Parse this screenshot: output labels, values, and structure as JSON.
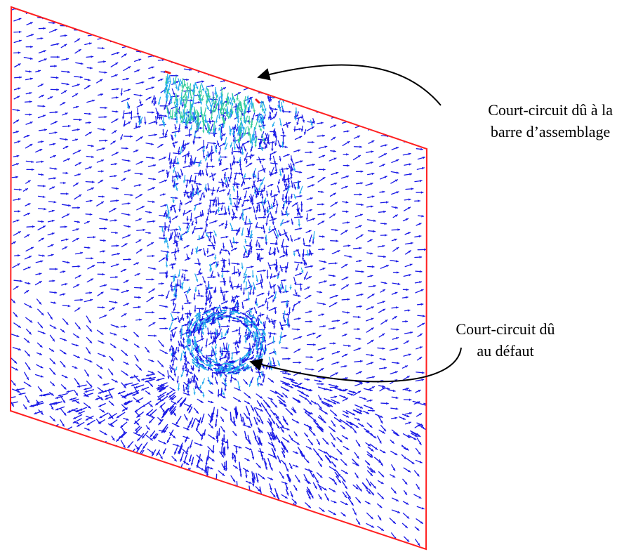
{
  "annotations": {
    "busbar_short_circuit": {
      "line1": "Court-circuit dû à la",
      "line2": "barre d’assemblage"
    },
    "defect_short_circuit": {
      "line1": "Court-circuit dû",
      "line2": "au défaut"
    }
  },
  "colors": {
    "plate_border": "#ff2020",
    "vector_low": "#1a1ae6",
    "vector_mid": "#22aaee",
    "vector_high": "#ee2020",
    "arrow": "#000000"
  }
}
